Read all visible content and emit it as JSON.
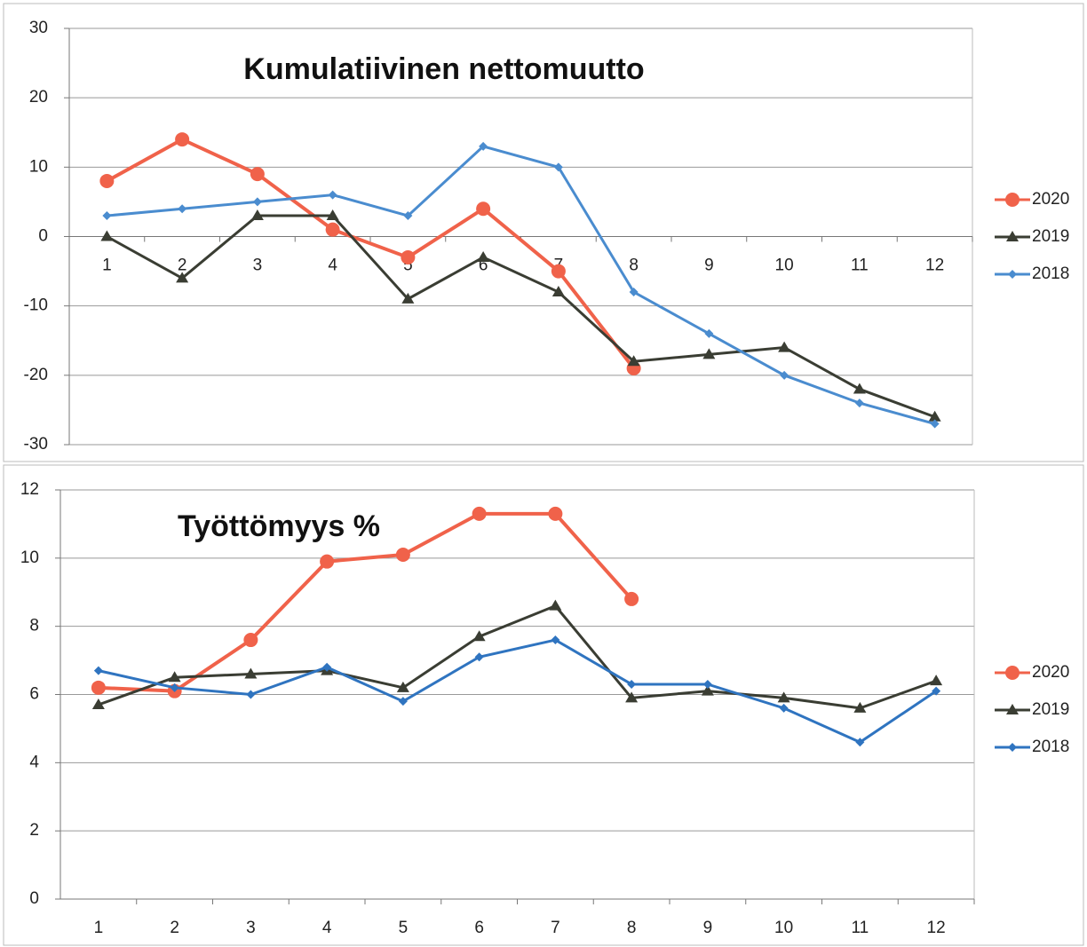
{
  "chart_data": [
    {
      "type": "line",
      "title": "Kumulatiivinen nettomuutto",
      "categories": [
        "1",
        "2",
        "3",
        "4",
        "5",
        "6",
        "7",
        "8",
        "9",
        "10",
        "11",
        "12"
      ],
      "series": [
        {
          "name": "2020",
          "color": "#f0624a",
          "marker": "circle",
          "values": [
            8,
            14,
            9,
            1,
            -3,
            4,
            -5,
            -19,
            null,
            null,
            null,
            null
          ]
        },
        {
          "name": "2019",
          "color": "#3a3d33",
          "marker": "triangle",
          "values": [
            0,
            -6,
            3,
            3,
            -9,
            -3,
            -8,
            -18,
            -17,
            -16,
            -22,
            -26
          ]
        },
        {
          "name": "2018",
          "color": "#4a8ccf",
          "marker": "diamond",
          "values": [
            3,
            4,
            5,
            6,
            3,
            13,
            10,
            -8,
            -14,
            -20,
            -24,
            -27
          ]
        }
      ],
      "ylim": [
        -30,
        30
      ],
      "yticks": [
        -30,
        -20,
        -10,
        0,
        10,
        20,
        30
      ],
      "grid": true,
      "legend": "right"
    },
    {
      "type": "line",
      "title": "Työttömyys %",
      "categories": [
        "1",
        "2",
        "3",
        "4",
        "5",
        "6",
        "7",
        "8",
        "9",
        "10",
        "11",
        "12"
      ],
      "series": [
        {
          "name": "2020",
          "color": "#f0624a",
          "marker": "circle",
          "values": [
            6.2,
            6.1,
            7.6,
            9.9,
            10.1,
            11.3,
            11.3,
            8.8,
            null,
            null,
            null,
            null
          ]
        },
        {
          "name": "2019",
          "color": "#3a3d33",
          "marker": "triangle",
          "values": [
            5.7,
            6.5,
            6.6,
            6.7,
            6.2,
            7.7,
            8.6,
            5.9,
            6.1,
            5.9,
            5.6,
            6.4
          ]
        },
        {
          "name": "2018",
          "color": "#2f74c0",
          "marker": "diamond",
          "values": [
            6.7,
            6.2,
            6.0,
            6.8,
            5.8,
            7.1,
            7.6,
            6.3,
            6.3,
            5.6,
            4.6,
            6.1
          ]
        }
      ],
      "ylim": [
        0,
        12
      ],
      "yticks": [
        0,
        2,
        4,
        6,
        8,
        10,
        12
      ],
      "grid": true,
      "legend": "right"
    }
  ]
}
